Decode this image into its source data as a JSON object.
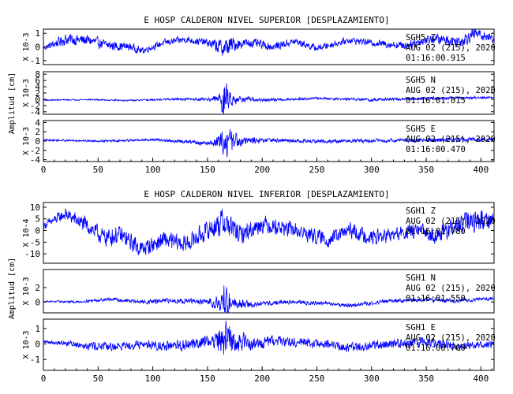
{
  "colors": {
    "trace": "#0000ff",
    "axes": "#000000",
    "background": "#ffffff"
  },
  "chart_data": [
    {
      "type": "line",
      "title": "E HOSP CALDERON NIVEL SUPERIOR [DESPLAZAMIENTO]",
      "ylabel": "Amplitud [cm]",
      "x_ticks": [
        0,
        50,
        100,
        150,
        200,
        250,
        300,
        350,
        400
      ],
      "xlim": [
        0,
        412
      ],
      "panels": [
        {
          "scale_label": "X 10-3",
          "ylim": [
            -1.3,
            1.3
          ],
          "y_ticks": [
            -1,
            0,
            1
          ],
          "station": "SGH5   Z",
          "date": "AUG 02 (215), 2020",
          "time": "01:16:00.915",
          "envelope": [
            [
              0,
              0.22
            ],
            [
              20,
              0.55
            ],
            [
              60,
              0.45
            ],
            [
              100,
              0.3
            ],
            [
              150,
              0.35
            ],
            [
              160,
              0.7
            ],
            [
              170,
              0.9
            ],
            [
              180,
              0.45
            ],
            [
              250,
              0.3
            ],
            [
              300,
              0.3
            ],
            [
              350,
              0.45
            ],
            [
              390,
              0.6
            ],
            [
              412,
              0.4
            ]
          ],
          "trend": [
            [
              0,
              -0.1
            ],
            [
              20,
              0.55
            ],
            [
              40,
              0.5
            ],
            [
              60,
              0.1
            ],
            [
              80,
              0.0
            ],
            [
              90,
              -0.3
            ],
            [
              110,
              0.3
            ],
            [
              130,
              0.55
            ],
            [
              150,
              0.3
            ],
            [
              165,
              -0.1
            ],
            [
              175,
              0.2
            ],
            [
              190,
              0.3
            ],
            [
              210,
              0.0
            ],
            [
              230,
              0.4
            ],
            [
              250,
              -0.1
            ],
            [
              280,
              0.5
            ],
            [
              300,
              0.3
            ],
            [
              330,
              0.1
            ],
            [
              355,
              0.6
            ],
            [
              380,
              0.4
            ],
            [
              395,
              1.0
            ],
            [
              412,
              0.6
            ]
          ]
        },
        {
          "scale_label": "X 10-3",
          "ylim": [
            -4.8,
            8.8
          ],
          "y_ticks": [
            -4,
            -2,
            0,
            2,
            4,
            6,
            8
          ],
          "station": "SGH5   N",
          "date": "AUG 02 (215), 2020",
          "time": "01:16:01.015",
          "envelope": [
            [
              0,
              0.25
            ],
            [
              100,
              0.35
            ],
            [
              150,
              0.6
            ],
            [
              160,
              1.6
            ],
            [
              165,
              8.0
            ],
            [
              170,
              3.0
            ],
            [
              180,
              1.2
            ],
            [
              200,
              0.6
            ],
            [
              250,
              0.5
            ],
            [
              300,
              0.6
            ],
            [
              350,
              0.6
            ],
            [
              412,
              0.5
            ]
          ],
          "trend": [
            [
              0,
              -0.3
            ],
            [
              40,
              -0.1
            ],
            [
              80,
              -0.4
            ],
            [
              120,
              0.0
            ],
            [
              150,
              0.0
            ],
            [
              170,
              0.2
            ],
            [
              200,
              -0.3
            ],
            [
              250,
              0.3
            ],
            [
              300,
              -0.2
            ],
            [
              350,
              0.3
            ],
            [
              412,
              0.5
            ]
          ]
        },
        {
          "scale_label": "X 10-3",
          "ylim": [
            -4.4,
            4.4
          ],
          "y_ticks": [
            -4,
            -2,
            0,
            2,
            4
          ],
          "station": "SGH5   E",
          "date": "AUG 02 (215), 2020",
          "time": "01:16:00.470",
          "envelope": [
            [
              0,
              0.25
            ],
            [
              100,
              0.35
            ],
            [
              150,
              0.6
            ],
            [
              160,
              1.5
            ],
            [
              166,
              4.0
            ],
            [
              172,
              3.2
            ],
            [
              180,
              1.4
            ],
            [
              200,
              0.6
            ],
            [
              250,
              0.5
            ],
            [
              300,
              0.5
            ],
            [
              350,
              0.6
            ],
            [
              412,
              0.5
            ]
          ],
          "trend": [
            [
              0,
              0.2
            ],
            [
              60,
              0.0
            ],
            [
              100,
              0.3
            ],
            [
              150,
              -0.5
            ],
            [
              170,
              0.0
            ],
            [
              200,
              0.2
            ],
            [
              250,
              -0.1
            ],
            [
              300,
              0.1
            ],
            [
              350,
              0.2
            ],
            [
              412,
              0.4
            ]
          ]
        }
      ]
    },
    {
      "type": "line",
      "title": "E HOSP CALDERON NIVEL INFERIOR [DESPLAZAMIENTO]",
      "ylabel": "Amplitud [cm]",
      "x_ticks": [
        0,
        50,
        100,
        150,
        200,
        250,
        300,
        350,
        400
      ],
      "xlim": [
        0,
        412
      ],
      "panels": [
        {
          "scale_label": "X 10-4",
          "ylim": [
            -14,
            12
          ],
          "y_ticks": [
            -10,
            -5,
            0,
            5,
            10
          ],
          "station": "SGH1   Z",
          "date": "AUG 02 (215), 2020",
          "time": "01:16:01.780",
          "envelope": [
            [
              0,
              2
            ],
            [
              30,
              4
            ],
            [
              60,
              5
            ],
            [
              100,
              4.5
            ],
            [
              150,
              5
            ],
            [
              165,
              8
            ],
            [
              180,
              5
            ],
            [
              250,
              4
            ],
            [
              300,
              4
            ],
            [
              350,
              4
            ],
            [
              390,
              6
            ],
            [
              412,
              5
            ]
          ],
          "trend": [
            [
              0,
              2
            ],
            [
              20,
              7
            ],
            [
              40,
              2
            ],
            [
              55,
              -3
            ],
            [
              70,
              -2
            ],
            [
              90,
              -8
            ],
            [
              110,
              -4
            ],
            [
              130,
              -6
            ],
            [
              150,
              0
            ],
            [
              165,
              4
            ],
            [
              180,
              -2
            ],
            [
              200,
              3
            ],
            [
              230,
              0
            ],
            [
              260,
              -4
            ],
            [
              280,
              0
            ],
            [
              300,
              -3
            ],
            [
              320,
              -2
            ],
            [
              340,
              0
            ],
            [
              360,
              -2
            ],
            [
              390,
              4
            ],
            [
              412,
              5
            ]
          ]
        },
        {
          "scale_label": "X 10-3",
          "ylim": [
            -1.5,
            4.5
          ],
          "y_ticks": [
            0,
            2
          ],
          "station": "SGH1   N",
          "date": "AUG 02 (215), 2020",
          "time": "01:16:01.550",
          "envelope": [
            [
              0,
              0.12
            ],
            [
              60,
              0.3
            ],
            [
              100,
              0.4
            ],
            [
              150,
              0.5
            ],
            [
              163,
              1.8
            ],
            [
              166,
              4.2
            ],
            [
              172,
              1.0
            ],
            [
              200,
              0.4
            ],
            [
              250,
              0.35
            ],
            [
              300,
              0.35
            ],
            [
              350,
              0.35
            ],
            [
              412,
              0.3
            ]
          ],
          "trend": [
            [
              0,
              0.1
            ],
            [
              30,
              0.0
            ],
            [
              60,
              0.4
            ],
            [
              90,
              0.0
            ],
            [
              120,
              0.2
            ],
            [
              150,
              0.0
            ],
            [
              170,
              0.0
            ],
            [
              190,
              -0.4
            ],
            [
              220,
              0.0
            ],
            [
              260,
              -0.2
            ],
            [
              280,
              -0.5
            ],
            [
              320,
              0.2
            ],
            [
              350,
              0.3
            ],
            [
              380,
              0.2
            ],
            [
              412,
              0.5
            ]
          ]
        },
        {
          "scale_label": "X 10-3",
          "ylim": [
            -1.7,
            1.6
          ],
          "y_ticks": [
            -1,
            0,
            1
          ],
          "station": "SGH1   E",
          "date": "AUG 02 (215), 2020",
          "time": "01:16:00.700",
          "envelope": [
            [
              0,
              0.1
            ],
            [
              40,
              0.35
            ],
            [
              100,
              0.35
            ],
            [
              150,
              0.55
            ],
            [
              160,
              0.9
            ],
            [
              166,
              1.5
            ],
            [
              175,
              1.0
            ],
            [
              190,
              0.5
            ],
            [
              250,
              0.4
            ],
            [
              300,
              0.4
            ],
            [
              350,
              0.4
            ],
            [
              412,
              0.3
            ]
          ],
          "trend": [
            [
              0,
              0.15
            ],
            [
              30,
              0.0
            ],
            [
              60,
              -0.2
            ],
            [
              90,
              0.0
            ],
            [
              120,
              -0.2
            ],
            [
              150,
              0.2
            ],
            [
              170,
              0.3
            ],
            [
              190,
              0.0
            ],
            [
              220,
              0.2
            ],
            [
              250,
              0.0
            ],
            [
              280,
              -0.2
            ],
            [
              320,
              0.0
            ],
            [
              350,
              0.1
            ],
            [
              380,
              -0.1
            ],
            [
              412,
              0.0
            ]
          ]
        }
      ]
    }
  ]
}
